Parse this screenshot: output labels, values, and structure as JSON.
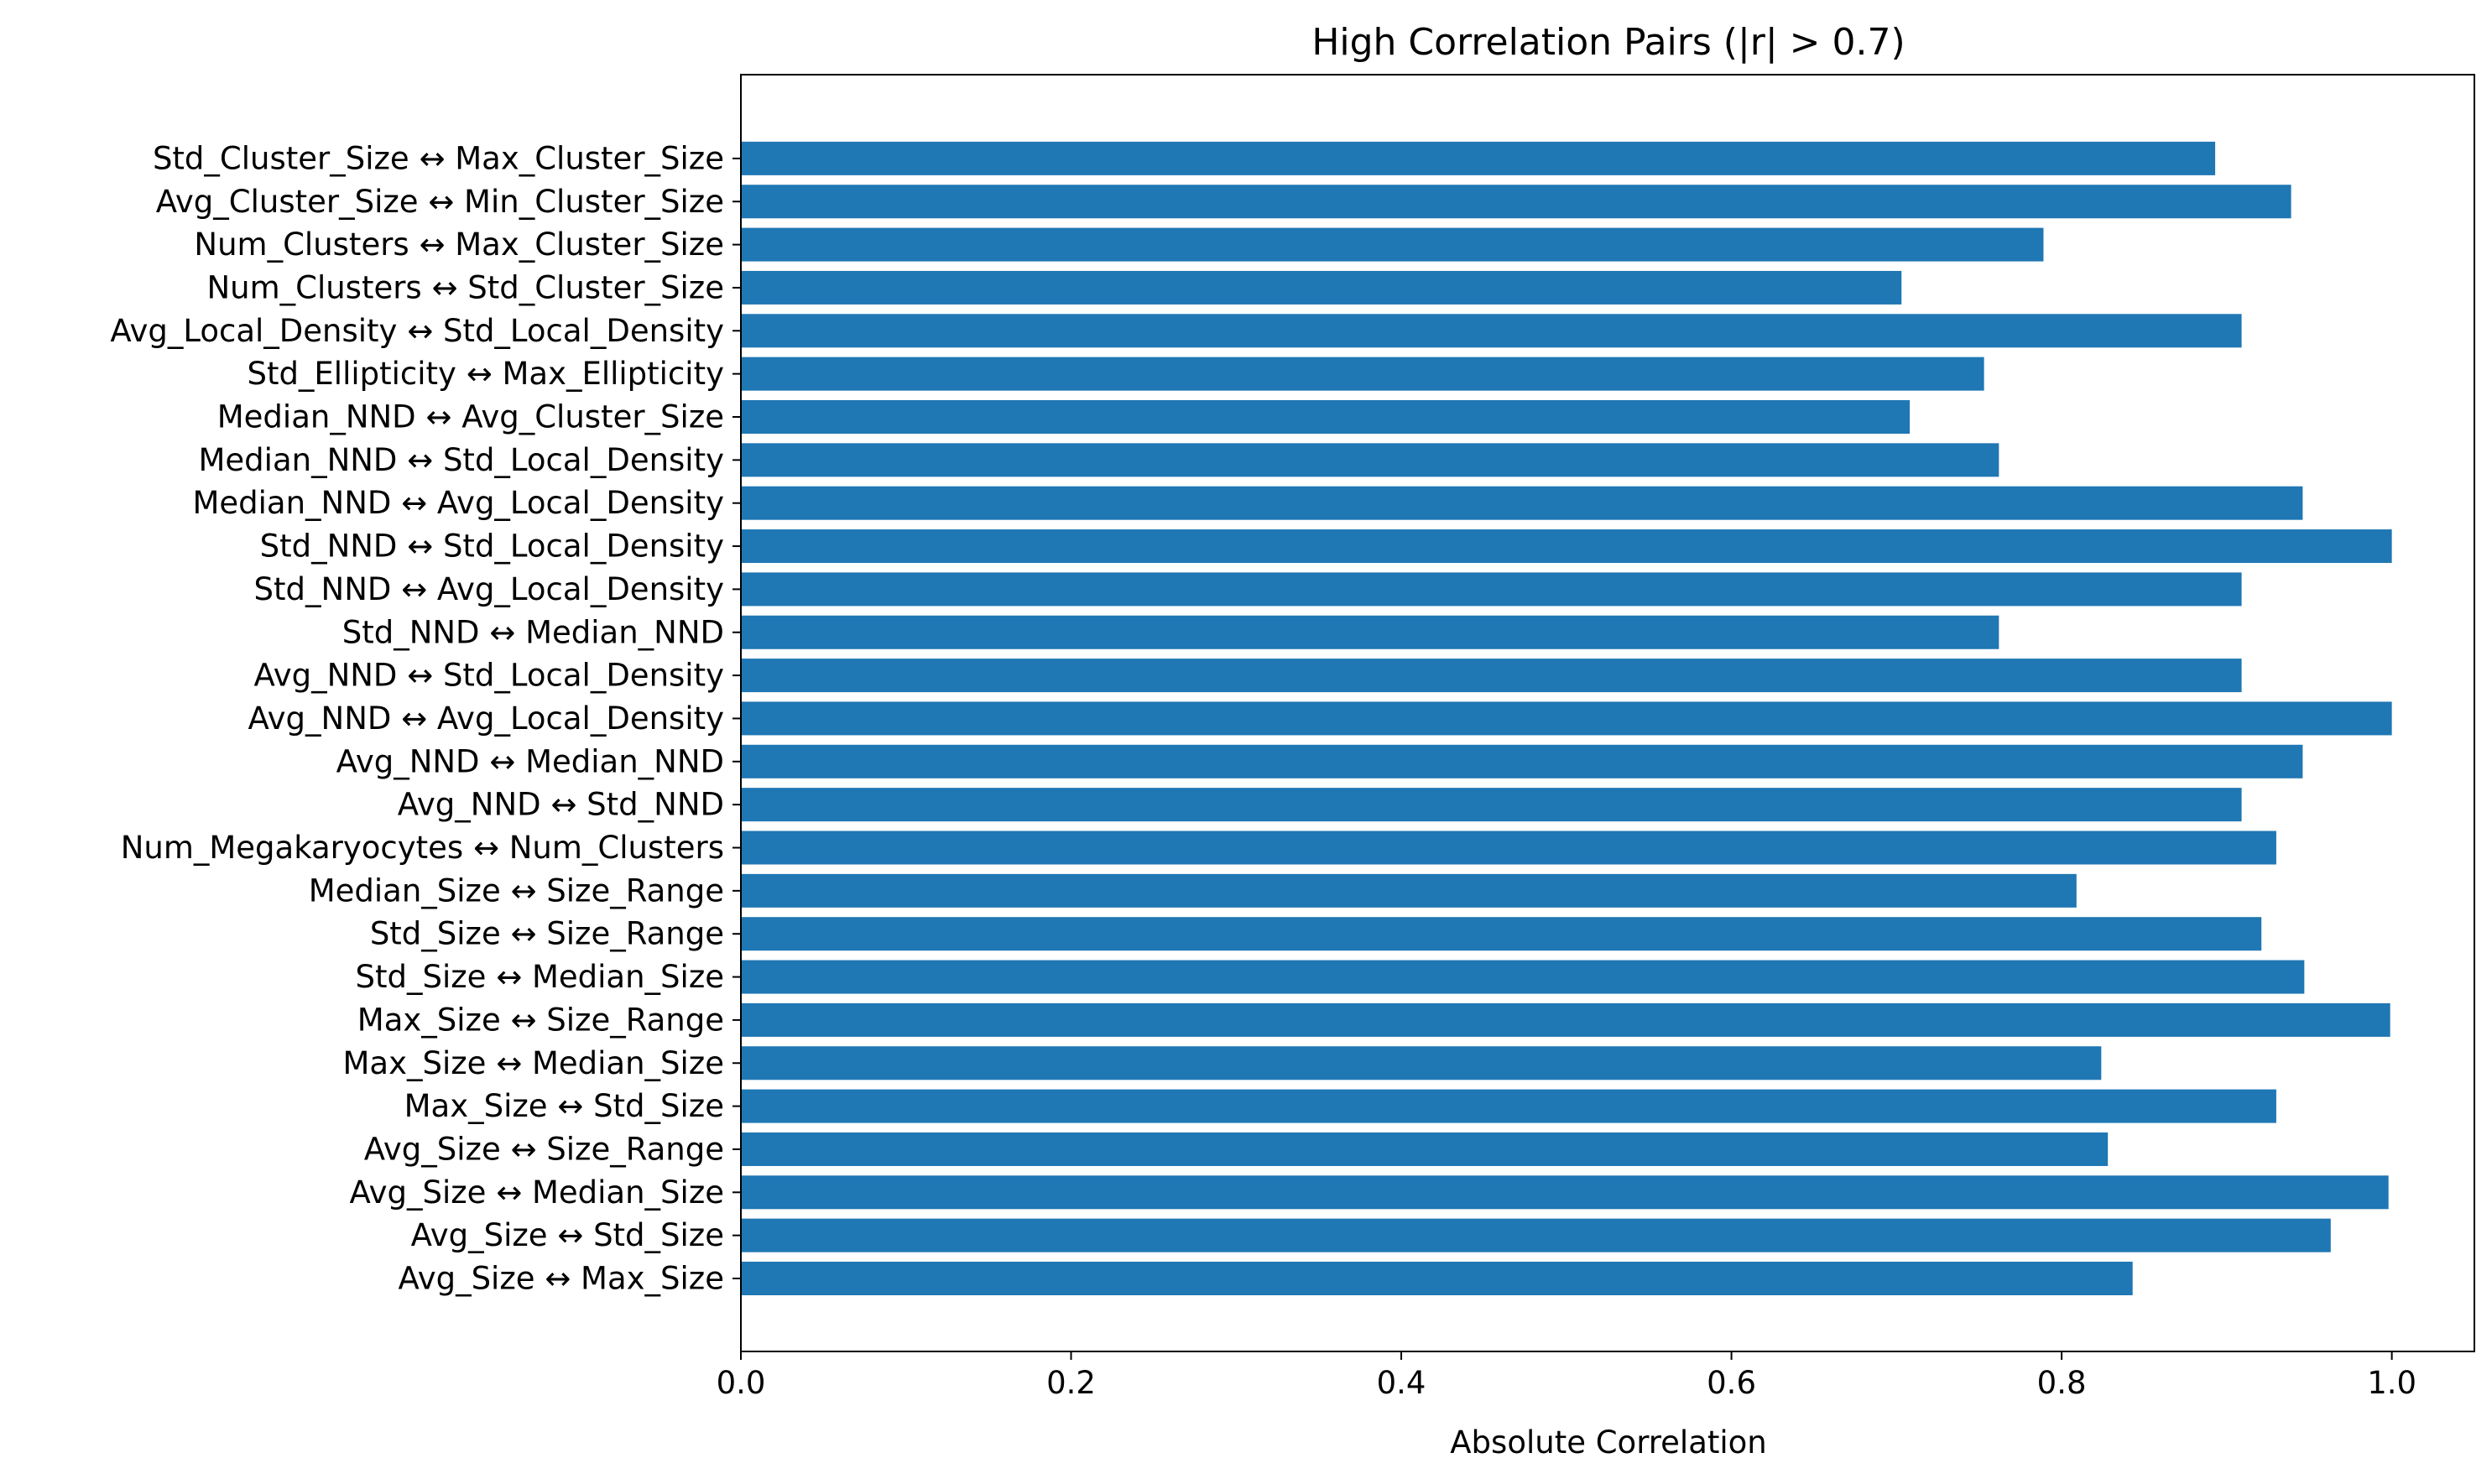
{
  "chart_data": {
    "type": "bar",
    "orientation": "horizontal",
    "title": "High Correlation Pairs (|r| > 0.7)",
    "xlabel": "Absolute Correlation",
    "ylabel": "",
    "xlim": [
      0,
      1.05
    ],
    "xticks": [
      "0.0",
      "0.2",
      "0.4",
      "0.6",
      "0.8",
      "1.0"
    ],
    "grid": false,
    "bar_color": "#1f77b4",
    "categories": [
      "Avg_Size ↔ Max_Size",
      "Avg_Size ↔ Std_Size",
      "Avg_Size ↔ Median_Size",
      "Avg_Size ↔ Size_Range",
      "Max_Size ↔ Std_Size",
      "Max_Size ↔ Median_Size",
      "Max_Size ↔ Size_Range",
      "Std_Size ↔ Median_Size",
      "Std_Size ↔ Size_Range",
      "Median_Size ↔ Size_Range",
      "Num_Megakaryocytes ↔ Num_Clusters",
      "Avg_NND ↔ Std_NND",
      "Avg_NND ↔ Median_NND",
      "Avg_NND ↔ Avg_Local_Density",
      "Avg_NND ↔ Std_Local_Density",
      "Std_NND ↔ Median_NND",
      "Std_NND ↔ Avg_Local_Density",
      "Std_NND ↔ Std_Local_Density",
      "Median_NND ↔ Avg_Local_Density",
      "Median_NND ↔ Std_Local_Density",
      "Median_NND ↔ Avg_Cluster_Size",
      "Std_Ellipticity ↔ Max_Ellipticity",
      "Avg_Local_Density ↔ Std_Local_Density",
      "Num_Clusters ↔ Std_Cluster_Size",
      "Num_Clusters ↔ Max_Cluster_Size",
      "Avg_Cluster_Size ↔ Min_Cluster_Size",
      "Std_Cluster_Size ↔ Max_Cluster_Size"
    ],
    "values": [
      0.843,
      0.963,
      0.998,
      0.828,
      0.93,
      0.824,
      0.999,
      0.947,
      0.921,
      0.809,
      0.93,
      0.909,
      0.946,
      1.0,
      0.909,
      0.762,
      0.909,
      1.0,
      0.946,
      0.762,
      0.708,
      0.753,
      0.909,
      0.703,
      0.789,
      0.939,
      0.893
    ]
  }
}
